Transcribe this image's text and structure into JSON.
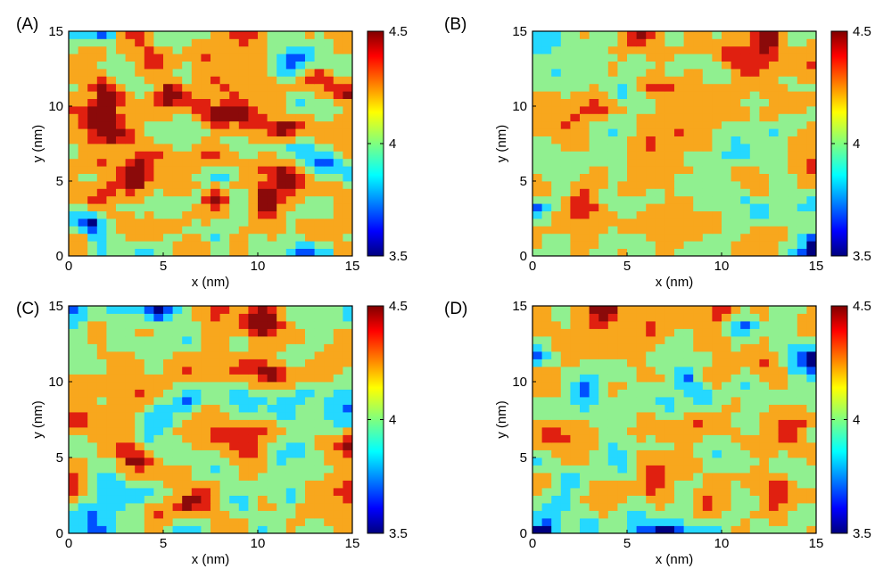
{
  "figure": {
    "panels": [
      {
        "id": "A",
        "label": "(A)",
        "xlabel": "x (nm)",
        "ylabel": "y (nm)"
      },
      {
        "id": "B",
        "label": "(B)",
        "xlabel": "x (nm)",
        "ylabel": "y (nm)"
      },
      {
        "id": "C",
        "label": "(C)",
        "xlabel": "x (nm)",
        "ylabel": "y (nm)"
      },
      {
        "id": "D",
        "label": "(D)",
        "xlabel": "x (nm)",
        "ylabel": "y (nm)"
      }
    ]
  },
  "chart_data": [
    {
      "type": "heatmap",
      "panel": "(A)",
      "xlabel": "x (nm)",
      "ylabel": "y (nm)",
      "xlim": [
        0,
        15
      ],
      "ylim": [
        0,
        15
      ],
      "xticks": [
        0,
        5,
        10,
        15
      ],
      "yticks": [
        0,
        5,
        10,
        15
      ],
      "colorbar": {
        "ticks": [
          3.5,
          4,
          4.5
        ],
        "range": [
          3.5,
          4.5
        ],
        "colormap": "jet"
      },
      "grid": false,
      "seed": 11
    },
    {
      "type": "heatmap",
      "panel": "(B)",
      "xlabel": "x (nm)",
      "ylabel": "y (nm)",
      "xlim": [
        0,
        15
      ],
      "ylim": [
        0,
        15
      ],
      "xticks": [
        0,
        5,
        10,
        15
      ],
      "yticks": [
        0,
        5,
        10,
        15
      ],
      "colorbar": {
        "ticks": [
          3.5,
          4,
          4.5
        ],
        "range": [
          3.5,
          4.5
        ],
        "colormap": "jet"
      },
      "grid": false,
      "seed": 23
    },
    {
      "type": "heatmap",
      "panel": "(C)",
      "xlabel": "x (nm)",
      "ylabel": "y (nm)",
      "xlim": [
        0,
        15
      ],
      "ylim": [
        0,
        15
      ],
      "xticks": [
        0,
        5,
        10,
        15
      ],
      "yticks": [
        0,
        5,
        10,
        15
      ],
      "colorbar": {
        "ticks": [
          3.5,
          4,
          4.5
        ],
        "range": [
          3.5,
          4.5
        ],
        "colormap": "jet"
      },
      "grid": false,
      "seed": 37
    },
    {
      "type": "heatmap",
      "panel": "(D)",
      "xlabel": "x (nm)",
      "ylabel": "y (nm)",
      "xlim": [
        0,
        15
      ],
      "ylim": [
        0,
        15
      ],
      "xticks": [
        0,
        5,
        10,
        15
      ],
      "yticks": [
        0,
        5,
        10,
        15
      ],
      "colorbar": {
        "ticks": [
          3.5,
          4,
          4.5
        ],
        "range": [
          3.5,
          4.5
        ],
        "colormap": "jet"
      },
      "grid": false,
      "seed": 53
    }
  ],
  "colors": {
    "levels": [
      "#000080",
      "#0050ff",
      "#25d8ff",
      "#90f090",
      "#f8a71d",
      "#e02010",
      "#8b0a0a"
    ],
    "axis": "#000000"
  }
}
